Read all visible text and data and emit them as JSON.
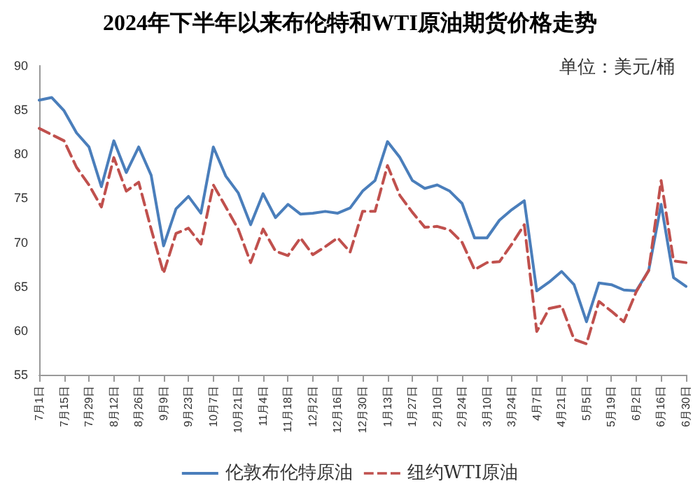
{
  "chart_data": {
    "type": "line",
    "title": "2024年下半年以来布伦特和WTI原油期货价格走势",
    "annotations": [
      "单位：美元/桶"
    ],
    "x": [
      "2024-07-01",
      "2024-07-08",
      "2024-07-15",
      "2024-07-22",
      "2024-07-29",
      "2024-08-05",
      "2024-08-12",
      "2024-08-19",
      "2024-08-26",
      "2024-09-02",
      "2024-09-09",
      "2024-09-16",
      "2024-09-23",
      "2024-09-30",
      "2024-10-07",
      "2024-10-14",
      "2024-10-21",
      "2024-10-28",
      "2024-11-04",
      "2024-11-11",
      "2024-11-18",
      "2024-11-25",
      "2024-12-02",
      "2024-12-09",
      "2024-12-16",
      "2024-12-23",
      "2024-12-30",
      "2025-01-06",
      "2025-01-13",
      "2025-01-20",
      "2025-01-27",
      "2025-02-03",
      "2025-02-10",
      "2025-02-17",
      "2025-02-24",
      "2025-03-03",
      "2025-03-10",
      "2025-03-17",
      "2025-03-24",
      "2025-03-31",
      "2025-04-07",
      "2025-04-14",
      "2025-04-21",
      "2025-04-28",
      "2025-05-05",
      "2025-05-12",
      "2025-05-19",
      "2025-05-26",
      "2025-06-02",
      "2025-06-09",
      "2025-06-16",
      "2025-06-23",
      "2025-06-30"
    ],
    "series": [
      {
        "name": "伦敦布伦特原油",
        "color": "#4a7ebb",
        "line_style": "solid",
        "values": [
          86.1,
          86.4,
          84.9,
          82.4,
          80.8,
          76.3,
          81.5,
          77.9,
          80.8,
          77.6,
          69.6,
          73.8,
          75.2,
          73.3,
          80.8,
          77.5,
          75.6,
          72.0,
          75.5,
          72.8,
          74.3,
          73.2,
          73.3,
          73.5,
          73.3,
          73.9,
          75.8,
          77.0,
          81.4,
          79.6,
          77.0,
          76.1,
          76.5,
          75.8,
          74.4,
          70.5,
          70.5,
          72.5,
          73.7,
          74.7,
          64.5,
          65.5,
          66.7,
          65.2,
          61.0,
          65.4,
          65.2,
          64.6,
          64.5,
          66.8,
          74.3,
          66.0,
          65.0
        ]
      },
      {
        "name": "纽约WTI原油",
        "color": "#c0504d",
        "line_style": "dashed",
        "values": [
          82.9,
          82.2,
          81.5,
          78.5,
          76.5,
          74.0,
          79.6,
          75.8,
          76.8,
          71.5,
          66.5,
          71.0,
          71.6,
          69.8,
          76.5,
          74.0,
          71.5,
          67.7,
          71.5,
          69.0,
          68.5,
          70.5,
          68.6,
          69.5,
          70.5,
          68.9,
          73.5,
          73.5,
          78.7,
          75.3,
          73.4,
          71.7,
          71.8,
          71.4,
          70.0,
          66.9,
          67.7,
          67.8,
          69.8,
          72.0,
          59.9,
          62.5,
          62.8,
          59.0,
          58.5,
          63.3,
          62.2,
          61.0,
          64.4,
          66.8,
          77.0,
          67.9,
          67.7
        ]
      }
    ],
    "xlim": [
      "2024-07-01",
      "2025-06-30"
    ],
    "xticks": [
      {
        "value": "2024-07-01",
        "label": "7月1日"
      },
      {
        "value": "2024-07-15",
        "label": "7月15日"
      },
      {
        "value": "2024-07-29",
        "label": "7月29日"
      },
      {
        "value": "2024-08-12",
        "label": "8月12日"
      },
      {
        "value": "2024-08-26",
        "label": "8月26日"
      },
      {
        "value": "2024-09-09",
        "label": "9月9日"
      },
      {
        "value": "2024-09-23",
        "label": "9月23日"
      },
      {
        "value": "2024-10-07",
        "label": "10月7日"
      },
      {
        "value": "2024-10-21",
        "label": "10月21日"
      },
      {
        "value": "2024-11-04",
        "label": "11月4日"
      },
      {
        "value": "2024-11-18",
        "label": "11月18日"
      },
      {
        "value": "2024-12-02",
        "label": "12月2日"
      },
      {
        "value": "2024-12-16",
        "label": "12月16日"
      },
      {
        "value": "2024-12-30",
        "label": "12月30日"
      },
      {
        "value": "2025-01-13",
        "label": "1月13日"
      },
      {
        "value": "2025-01-27",
        "label": "1月27日"
      },
      {
        "value": "2025-02-10",
        "label": "2月10日"
      },
      {
        "value": "2025-02-24",
        "label": "2月24日"
      },
      {
        "value": "2025-03-10",
        "label": "3月10日"
      },
      {
        "value": "2025-03-24",
        "label": "3月24日"
      },
      {
        "value": "2025-04-07",
        "label": "4月7日"
      },
      {
        "value": "2025-04-21",
        "label": "4月21日"
      },
      {
        "value": "2025-05-05",
        "label": "5月5日"
      },
      {
        "value": "2025-05-19",
        "label": "5月19日"
      },
      {
        "value": "2025-06-02",
        "label": "6月2日"
      },
      {
        "value": "2025-06-16",
        "label": "6月16日"
      },
      {
        "value": "2025-06-30",
        "label": "6月30日"
      }
    ],
    "ylim": [
      55,
      90
    ],
    "yticks": [
      55,
      60,
      65,
      70,
      75,
      80,
      85,
      90
    ],
    "grid": false,
    "legend": "bottom",
    "marker": "none"
  }
}
